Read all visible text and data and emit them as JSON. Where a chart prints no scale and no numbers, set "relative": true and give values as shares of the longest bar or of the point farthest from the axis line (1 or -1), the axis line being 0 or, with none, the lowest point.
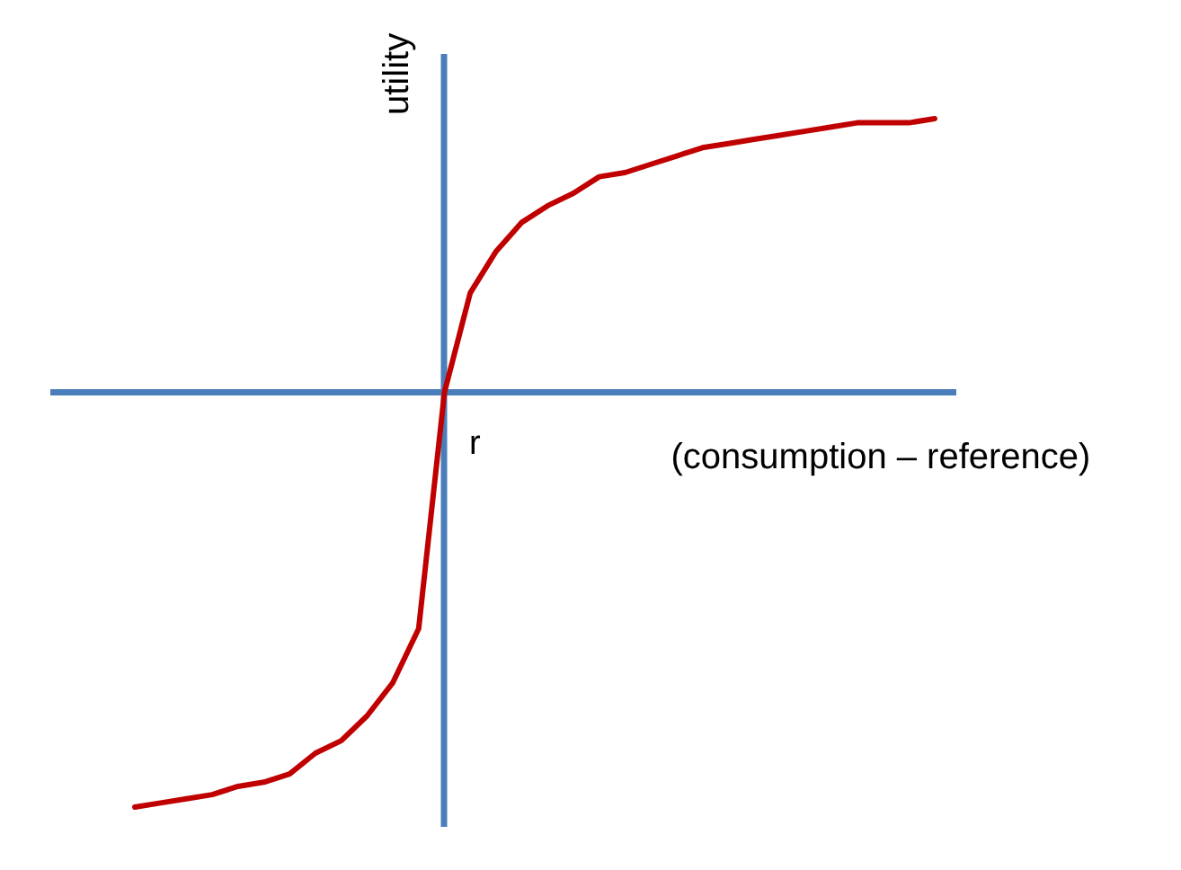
{
  "chart_data": {
    "type": "line",
    "relative": true,
    "xlabel": "(consumption – reference)",
    "ylabel": "utility",
    "annotations": [
      "r"
    ],
    "ref_lines": [
      {
        "axis": "y",
        "value": 0,
        "color": "#4a7ebb"
      }
    ],
    "categories": [
      null,
      null,
      null,
      null,
      null,
      null,
      null,
      null,
      null,
      null,
      null,
      null,
      null,
      null,
      null,
      null,
      null,
      null,
      null,
      null,
      null,
      null,
      null,
      null,
      null,
      null,
      null,
      null,
      null,
      null,
      null,
      null
    ],
    "series": [
      {
        "color": "#c00000",
        "values": [
          -1,
          -0.99,
          -0.98,
          -0.97,
          -0.95,
          -0.94,
          -0.92,
          -0.87,
          -0.84,
          -0.78,
          -0.7,
          -0.57,
          0,
          0.24,
          0.34,
          0.41,
          0.45,
          0.48,
          0.52,
          0.53,
          0.55,
          0.57,
          0.59,
          0.6,
          0.61,
          0.62,
          0.63,
          0.64,
          0.65,
          0.65,
          0.65,
          0.66
        ]
      }
    ]
  }
}
